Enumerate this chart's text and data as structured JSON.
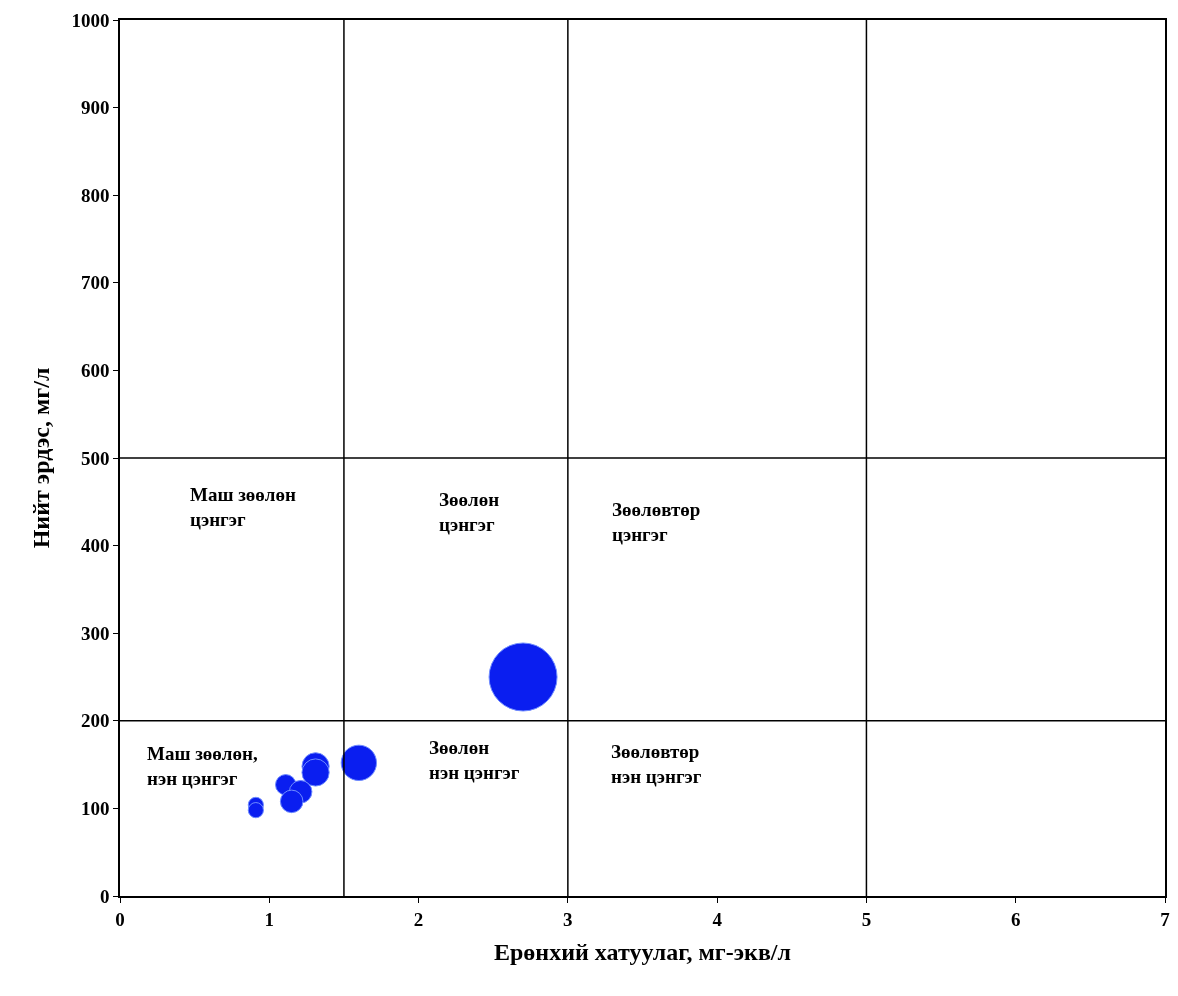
{
  "chart_data": {
    "type": "bubble",
    "xlabel": "Ерөнхий хатуулаг, мг-экв/л",
    "ylabel": "Нийт эрдэс, мг/л",
    "x": [
      2.7,
      1.6,
      1.31,
      1.31,
      1.11,
      1.21,
      1.15,
      0.91,
      0.91
    ],
    "values": [
      250,
      152,
      148,
      141,
      127,
      119,
      108,
      104,
      98
    ],
    "sizes": [
      1,
      0.27,
      0.16,
      0.16,
      0.09,
      0.11,
      0.11,
      0.05,
      0.05
    ],
    "color": "#0a1ef0",
    "xlim": [
      0,
      7
    ],
    "xticks": [
      0,
      1,
      2,
      3,
      4,
      5,
      6,
      7
    ],
    "ylim": [
      0,
      1000
    ],
    "yticks": [
      0,
      100,
      200,
      300,
      400,
      500,
      600,
      700,
      800,
      900,
      1000
    ],
    "ref_lines": [
      {
        "axis": "x",
        "value": 1.5
      },
      {
        "axis": "x",
        "value": 3
      },
      {
        "axis": "x",
        "value": 5
      },
      {
        "axis": "y",
        "value": 200
      },
      {
        "axis": "y",
        "value": 500
      }
    ],
    "annotations": [
      "Маш зөөлөн\nцэнгэг",
      "Зөөлөн\nцэнгэг",
      "Зөөлөвтөр\nцэнгэг",
      "Маш зөөлөн,\nнэн цэнгэг",
      "Зөөлөн\nнэн цэнгэг",
      "Зөөлөвтөр\nнэн цэнгэг"
    ]
  }
}
